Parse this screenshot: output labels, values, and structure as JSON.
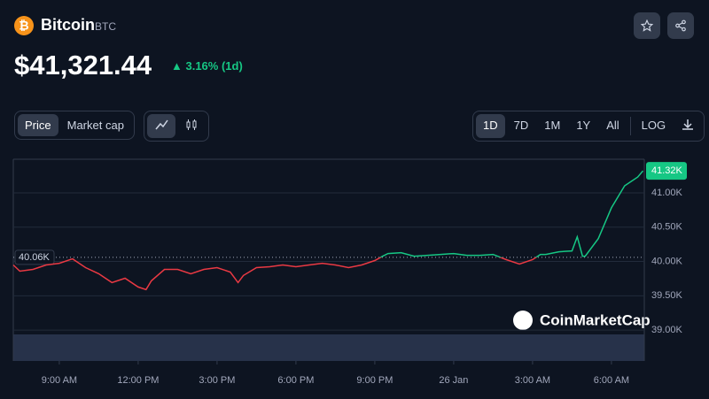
{
  "header": {
    "name": "Bitcoin",
    "symbol": "BTC",
    "price": "$41,321.44",
    "change": "3.16% (1d)"
  },
  "toolbar": {
    "metric_tabs": [
      "Price",
      "Market cap"
    ],
    "ranges": [
      "1D",
      "7D",
      "1M",
      "1Y",
      "All"
    ],
    "scale": "LOG"
  },
  "watermark": "CoinMarketCap",
  "chart_data": {
    "type": "line",
    "x": [
      7.25,
      7.5,
      8,
      8.5,
      9,
      9.5,
      10,
      10.5,
      11,
      11.5,
      12,
      12.3,
      12.5,
      13,
      13.5,
      14,
      14.5,
      15,
      15.5,
      15.8,
      16,
      16.5,
      17,
      17.5,
      18,
      18.5,
      19,
      19.5,
      20,
      20.5,
      21,
      21.3,
      21.5,
      22,
      22.5,
      23,
      23.5,
      24,
      24.5,
      25,
      25.5,
      26,
      26.5,
      27,
      27.3,
      27.5,
      28,
      28.5,
      28.7,
      28.9,
      29,
      29.5,
      30,
      30.5,
      31,
      31.2
    ],
    "values": [
      39949,
      39859,
      39885,
      39949,
      39974,
      40038,
      39910,
      39821,
      39692,
      39756,
      39628,
      39590,
      39718,
      39885,
      39885,
      39821,
      39885,
      39910,
      39846,
      39692,
      39795,
      39910,
      39923,
      39949,
      39923,
      39949,
      39974,
      39949,
      39910,
      39949,
      40013,
      40077,
      40115,
      40128,
      40077,
      40090,
      40103,
      40115,
      40090,
      40090,
      40103,
      40026,
      39962,
      40026,
      40103,
      40103,
      40141,
      40154,
      40359,
      40077,
      40077,
      40333,
      40782,
      41103,
      41231,
      41321
    ],
    "color_above": "#16c784",
    "color_below": "#ea3943",
    "reference": {
      "value": 40060,
      "label": "40.06K"
    },
    "current": {
      "value": 41320,
      "label": "41.32K"
    },
    "xlim": [
      7.25,
      31.25
    ],
    "xticks": [
      {
        "value": 9,
        "label": "9:00 AM"
      },
      {
        "value": 12,
        "label": "12:00 PM"
      },
      {
        "value": 15,
        "label": "3:00 PM"
      },
      {
        "value": 18,
        "label": "6:00 PM"
      },
      {
        "value": 21,
        "label": "9:00 PM"
      },
      {
        "value": 24,
        "label": "26 Jan"
      },
      {
        "value": 27,
        "label": "3:00 AM"
      },
      {
        "value": 30,
        "label": "6:00 AM"
      }
    ],
    "ylim": [
      38550,
      41490
    ],
    "yticks": [
      {
        "value": 39000,
        "label": "39.00K"
      },
      {
        "value": 39500,
        "label": "39.50K"
      },
      {
        "value": 40000,
        "label": "40.00K"
      },
      {
        "value": 40500,
        "label": "40.50K"
      },
      {
        "value": 41000,
        "label": "41.00K"
      }
    ],
    "grid": true
  }
}
